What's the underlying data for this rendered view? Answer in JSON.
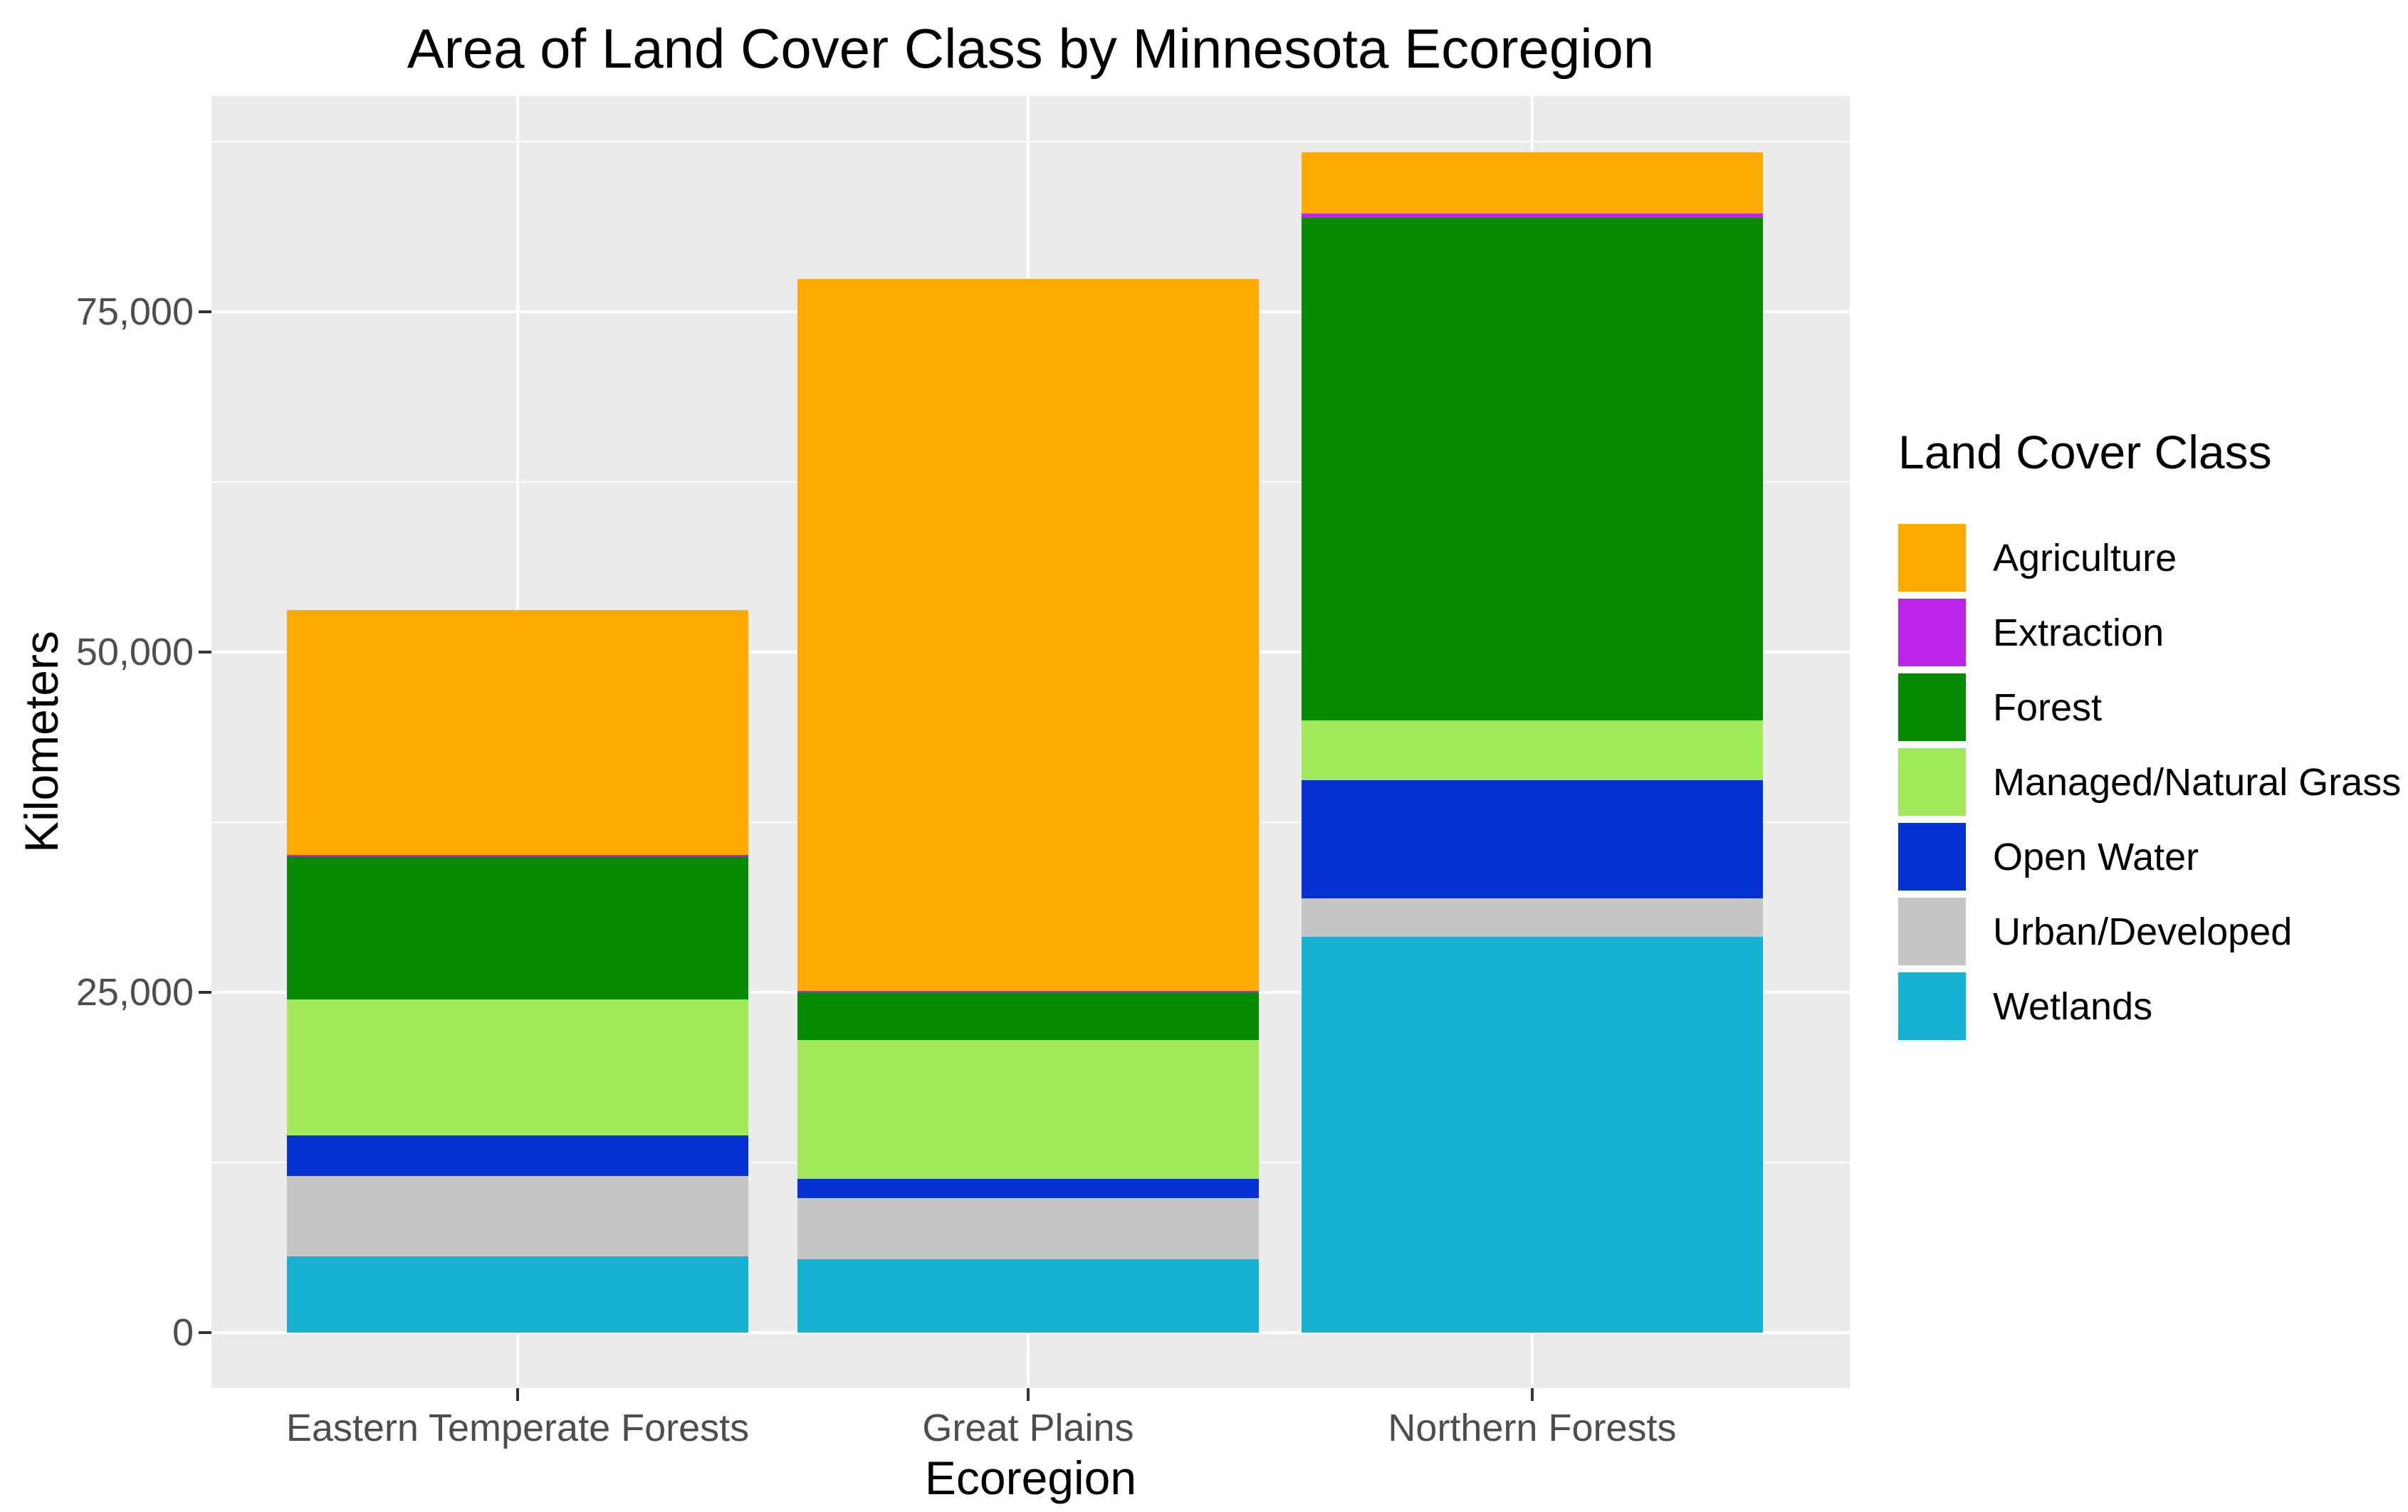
{
  "chart_data": {
    "type": "bar",
    "stacked": true,
    "title": "Area of Land Cover Class by Minnesota Ecoregion",
    "xlabel": "Ecoregion",
    "ylabel": "Kilometers",
    "categories": [
      "Eastern Temperate Forests",
      "Great Plains",
      "Northern Forests"
    ],
    "series": [
      {
        "name": "Agriculture",
        "color": "#FFAA00",
        "values": [
          18000,
          52300,
          4500
        ]
      },
      {
        "name": "Extraction",
        "color": "#BC24E8",
        "values": [
          100,
          100,
          300
        ]
      },
      {
        "name": "Forest",
        "color": "#078A00",
        "values": [
          10500,
          3500,
          36900
        ]
      },
      {
        "name": "Managed/Natural Grass",
        "color": "#A2E85B",
        "values": [
          10000,
          10200,
          4400
        ]
      },
      {
        "name": "Open Water",
        "color": "#0732D2",
        "values": [
          3000,
          1400,
          8700
        ]
      },
      {
        "name": "Urban/Developed",
        "color": "#C5C5C5",
        "values": [
          5900,
          4500,
          2800
        ]
      },
      {
        "name": "Wetlands",
        "color": "#17B0D1",
        "values": [
          5600,
          5400,
          29100
        ]
      }
    ],
    "stack_order_note": "first series renders at top of each stacked bar, Wetlands at bottom",
    "category_totals": [
      53100,
      77400,
      86700
    ],
    "y_axis": {
      "ticks": [
        {
          "value": 0,
          "label": "0"
        },
        {
          "value": 25000,
          "label": "25,000"
        },
        {
          "value": 50000,
          "label": "50,000"
        },
        {
          "value": 75000,
          "label": "75,000"
        }
      ],
      "minor_gridlines": [
        12500,
        37500,
        62500,
        87500
      ],
      "ylim": [
        0,
        87500
      ]
    },
    "legend": {
      "title": "Land Cover Class",
      "position": "right"
    },
    "style": {
      "panel_background": "#EBEBEB",
      "gridline_color": "#FFFFFF",
      "axis_text_color": "#4D4D4D",
      "title_color": "#000000",
      "tick_mark_color": "#333333",
      "grid": "major and minor horizontal gridlines, major vertical gridline at each category center"
    }
  }
}
